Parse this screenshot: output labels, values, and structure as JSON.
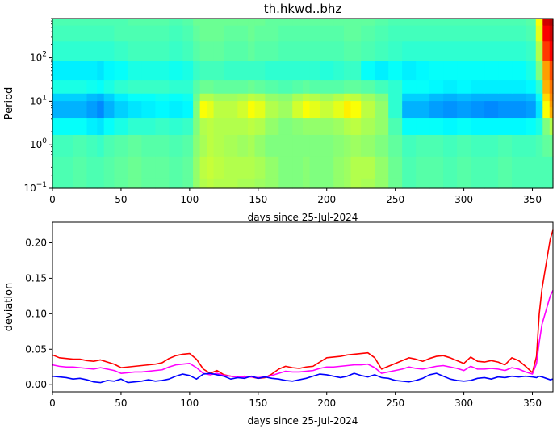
{
  "title": "th.hkwd..bhz",
  "chart_data": [
    {
      "type": "heatmap",
      "xlabel": "days since 25-Jul-2024",
      "ylabel": "Period",
      "xlim": [
        0,
        365
      ],
      "ylim": [
        0.1,
        800
      ],
      "yscale": "log",
      "xticks": [
        0,
        50,
        100,
        150,
        200,
        250,
        300,
        350
      ],
      "yticks": [
        {
          "value": 0.1,
          "base": "10",
          "exp": "−1"
        },
        {
          "value": 1,
          "base": "10",
          "exp": "0"
        },
        {
          "value": 10,
          "base": "10",
          "exp": "1"
        },
        {
          "value": 100,
          "base": "10",
          "exp": "2"
        }
      ],
      "colormap": "jet",
      "colorscale": [
        "#00007f",
        "#0000ff",
        "#007fff",
        "#00ffff",
        "#7fff7f",
        "#ffff00",
        "#ff7f00",
        "#ff0000",
        "#7f0000"
      ],
      "day_columns": [
        0,
        10,
        20,
        30,
        35,
        40,
        50,
        60,
        70,
        80,
        90,
        100,
        105,
        110,
        115,
        120,
        130,
        140,
        145,
        150,
        160,
        170,
        180,
        185,
        190,
        200,
        210,
        215,
        220,
        230,
        240,
        250,
        260,
        270,
        280,
        290,
        300,
        310,
        320,
        330,
        340,
        350,
        355,
        360,
        365
      ],
      "period_rows": [
        0.1,
        0.3,
        1,
        3,
        6,
        9,
        12,
        20,
        50,
        150,
        400,
        800
      ],
      "values": [
        [
          0.45,
          0.45,
          0.46,
          0.45,
          0.45,
          0.46,
          0.47,
          0.48,
          0.47,
          0.47,
          0.46,
          0.47,
          0.52,
          0.55,
          0.56,
          0.55,
          0.55,
          0.54,
          0.54,
          0.53,
          0.52,
          0.5,
          0.5,
          0.51,
          0.5,
          0.5,
          0.52,
          0.53,
          0.55,
          0.54,
          0.52,
          0.48,
          0.45,
          0.46,
          0.46,
          0.45,
          0.46,
          0.45,
          0.45,
          0.46,
          0.45,
          0.45,
          0.45,
          0.45,
          0.45
        ],
        [
          0.45,
          0.45,
          0.46,
          0.45,
          0.45,
          0.46,
          0.47,
          0.48,
          0.47,
          0.47,
          0.46,
          0.47,
          0.52,
          0.56,
          0.57,
          0.56,
          0.55,
          0.55,
          0.55,
          0.54,
          0.52,
          0.5,
          0.5,
          0.51,
          0.5,
          0.5,
          0.52,
          0.53,
          0.55,
          0.55,
          0.52,
          0.48,
          0.45,
          0.46,
          0.46,
          0.45,
          0.46,
          0.45,
          0.45,
          0.46,
          0.45,
          0.45,
          0.45,
          0.45,
          0.45
        ],
        [
          0.44,
          0.44,
          0.45,
          0.44,
          0.43,
          0.45,
          0.46,
          0.47,
          0.46,
          0.46,
          0.45,
          0.46,
          0.51,
          0.54,
          0.56,
          0.55,
          0.54,
          0.53,
          0.54,
          0.52,
          0.5,
          0.5,
          0.5,
          0.5,
          0.5,
          0.5,
          0.51,
          0.52,
          0.53,
          0.52,
          0.5,
          0.47,
          0.44,
          0.45,
          0.45,
          0.44,
          0.45,
          0.44,
          0.44,
          0.45,
          0.44,
          0.44,
          0.45,
          0.47,
          0.48
        ],
        [
          0.38,
          0.38,
          0.38,
          0.36,
          0.35,
          0.38,
          0.4,
          0.42,
          0.42,
          0.43,
          0.42,
          0.43,
          0.5,
          0.55,
          0.56,
          0.55,
          0.55,
          0.55,
          0.56,
          0.55,
          0.52,
          0.5,
          0.51,
          0.52,
          0.52,
          0.52,
          0.53,
          0.55,
          0.56,
          0.54,
          0.52,
          0.45,
          0.38,
          0.38,
          0.38,
          0.37,
          0.38,
          0.37,
          0.37,
          0.37,
          0.37,
          0.38,
          0.4,
          0.5,
          0.55
        ],
        [
          0.3,
          0.3,
          0.3,
          0.28,
          0.26,
          0.3,
          0.33,
          0.35,
          0.36,
          0.37,
          0.36,
          0.37,
          0.5,
          0.62,
          0.6,
          0.56,
          0.56,
          0.58,
          0.62,
          0.6,
          0.55,
          0.53,
          0.58,
          0.62,
          0.6,
          0.57,
          0.6,
          0.64,
          0.62,
          0.56,
          0.52,
          0.42,
          0.3,
          0.3,
          0.28,
          0.27,
          0.28,
          0.27,
          0.26,
          0.27,
          0.27,
          0.28,
          0.35,
          0.62,
          0.7
        ],
        [
          0.3,
          0.3,
          0.3,
          0.28,
          0.26,
          0.3,
          0.33,
          0.35,
          0.36,
          0.37,
          0.36,
          0.37,
          0.5,
          0.62,
          0.6,
          0.56,
          0.56,
          0.58,
          0.62,
          0.6,
          0.55,
          0.53,
          0.58,
          0.62,
          0.6,
          0.57,
          0.6,
          0.64,
          0.62,
          0.56,
          0.52,
          0.42,
          0.3,
          0.3,
          0.28,
          0.27,
          0.28,
          0.27,
          0.26,
          0.27,
          0.27,
          0.28,
          0.35,
          0.62,
          0.72
        ],
        [
          0.33,
          0.33,
          0.33,
          0.31,
          0.3,
          0.33,
          0.36,
          0.38,
          0.38,
          0.39,
          0.38,
          0.39,
          0.48,
          0.55,
          0.55,
          0.53,
          0.53,
          0.54,
          0.56,
          0.55,
          0.52,
          0.51,
          0.54,
          0.56,
          0.55,
          0.53,
          0.55,
          0.57,
          0.56,
          0.53,
          0.5,
          0.42,
          0.33,
          0.33,
          0.31,
          0.3,
          0.31,
          0.3,
          0.3,
          0.3,
          0.3,
          0.31,
          0.38,
          0.66,
          0.74
        ],
        [
          0.4,
          0.4,
          0.4,
          0.39,
          0.38,
          0.4,
          0.42,
          0.43,
          0.43,
          0.43,
          0.42,
          0.42,
          0.46,
          0.48,
          0.48,
          0.47,
          0.47,
          0.47,
          0.48,
          0.47,
          0.46,
          0.45,
          0.46,
          0.47,
          0.46,
          0.46,
          0.46,
          0.47,
          0.47,
          0.46,
          0.44,
          0.42,
          0.38,
          0.38,
          0.37,
          0.36,
          0.37,
          0.36,
          0.36,
          0.36,
          0.36,
          0.37,
          0.42,
          0.7,
          0.76
        ],
        [
          0.36,
          0.36,
          0.36,
          0.36,
          0.35,
          0.37,
          0.38,
          0.4,
          0.4,
          0.4,
          0.39,
          0.4,
          0.43,
          0.44,
          0.44,
          0.44,
          0.43,
          0.43,
          0.43,
          0.43,
          0.42,
          0.42,
          0.42,
          0.42,
          0.42,
          0.41,
          0.42,
          0.43,
          0.43,
          0.38,
          0.36,
          0.38,
          0.36,
          0.37,
          0.38,
          0.38,
          0.38,
          0.38,
          0.38,
          0.38,
          0.38,
          0.4,
          0.5,
          0.72,
          0.8
        ],
        [
          0.42,
          0.42,
          0.42,
          0.42,
          0.42,
          0.42,
          0.43,
          0.44,
          0.44,
          0.44,
          0.43,
          0.44,
          0.46,
          0.47,
          0.47,
          0.47,
          0.46,
          0.46,
          0.47,
          0.46,
          0.46,
          0.45,
          0.45,
          0.45,
          0.45,
          0.45,
          0.45,
          0.46,
          0.46,
          0.45,
          0.44,
          0.43,
          0.42,
          0.42,
          0.42,
          0.42,
          0.42,
          0.42,
          0.42,
          0.42,
          0.42,
          0.43,
          0.55,
          0.82,
          0.88
        ],
        [
          0.44,
          0.44,
          0.44,
          0.44,
          0.44,
          0.44,
          0.45,
          0.45,
          0.45,
          0.45,
          0.44,
          0.45,
          0.47,
          0.48,
          0.48,
          0.48,
          0.47,
          0.47,
          0.48,
          0.47,
          0.47,
          0.46,
          0.46,
          0.46,
          0.46,
          0.46,
          0.46,
          0.47,
          0.47,
          0.46,
          0.45,
          0.44,
          0.44,
          0.44,
          0.44,
          0.44,
          0.44,
          0.44,
          0.44,
          0.44,
          0.44,
          0.45,
          0.6,
          0.88,
          0.92
        ],
        [
          0.45,
          0.45,
          0.45,
          0.45,
          0.45,
          0.45,
          0.45,
          0.46,
          0.46,
          0.46,
          0.45,
          0.46,
          0.48,
          0.48,
          0.48,
          0.48,
          0.48,
          0.48,
          0.48,
          0.48,
          0.47,
          0.47,
          0.47,
          0.47,
          0.47,
          0.47,
          0.47,
          0.47,
          0.47,
          0.47,
          0.46,
          0.45,
          0.45,
          0.45,
          0.45,
          0.45,
          0.45,
          0.45,
          0.45,
          0.45,
          0.45,
          0.46,
          0.62,
          0.92,
          0.95
        ]
      ]
    },
    {
      "type": "line",
      "xlabel": "days since 25-Jul-2024",
      "ylabel": "deviation",
      "xlim": [
        0,
        365
      ],
      "ylim": [
        -0.01,
        0.229
      ],
      "xticks": [
        0,
        50,
        100,
        150,
        200,
        250,
        300,
        350
      ],
      "yticks": [
        "0.00",
        "0.05",
        "0.10",
        "0.15",
        "0.20"
      ],
      "x": [
        0,
        5,
        10,
        15,
        20,
        25,
        30,
        35,
        40,
        45,
        50,
        55,
        60,
        65,
        70,
        75,
        80,
        85,
        90,
        95,
        100,
        105,
        110,
        115,
        120,
        125,
        130,
        135,
        140,
        145,
        150,
        155,
        160,
        165,
        170,
        175,
        180,
        185,
        190,
        195,
        200,
        205,
        210,
        215,
        220,
        225,
        230,
        235,
        240,
        245,
        250,
        255,
        260,
        265,
        270,
        275,
        280,
        285,
        290,
        295,
        300,
        305,
        310,
        315,
        320,
        325,
        330,
        335,
        340,
        345,
        350,
        353,
        355,
        357,
        360,
        363,
        365
      ],
      "series": [
        {
          "color": "#ff0000",
          "values": [
            0.042,
            0.038,
            0.037,
            0.036,
            0.036,
            0.034,
            0.033,
            0.035,
            0.032,
            0.029,
            0.024,
            0.025,
            0.026,
            0.027,
            0.028,
            0.029,
            0.031,
            0.037,
            0.041,
            0.043,
            0.044,
            0.036,
            0.022,
            0.016,
            0.02,
            0.014,
            0.012,
            0.011,
            0.012,
            0.011,
            0.009,
            0.01,
            0.015,
            0.022,
            0.026,
            0.024,
            0.023,
            0.025,
            0.026,
            0.032,
            0.038,
            0.039,
            0.04,
            0.042,
            0.043,
            0.044,
            0.045,
            0.038,
            0.022,
            0.026,
            0.03,
            0.034,
            0.038,
            0.036,
            0.033,
            0.037,
            0.04,
            0.041,
            0.038,
            0.034,
            0.03,
            0.039,
            0.033,
            0.032,
            0.034,
            0.032,
            0.028,
            0.038,
            0.034,
            0.026,
            0.017,
            0.04,
            0.1,
            0.135,
            0.17,
            0.205,
            0.218
          ]
        },
        {
          "color": "#ff00ff",
          "values": [
            0.028,
            0.026,
            0.025,
            0.025,
            0.024,
            0.023,
            0.022,
            0.024,
            0.022,
            0.02,
            0.016,
            0.017,
            0.018,
            0.018,
            0.019,
            0.02,
            0.021,
            0.025,
            0.028,
            0.029,
            0.03,
            0.024,
            0.016,
            0.014,
            0.016,
            0.013,
            0.012,
            0.011,
            0.011,
            0.011,
            0.01,
            0.011,
            0.013,
            0.016,
            0.019,
            0.018,
            0.018,
            0.019,
            0.02,
            0.023,
            0.025,
            0.025,
            0.026,
            0.027,
            0.028,
            0.028,
            0.029,
            0.024,
            0.016,
            0.018,
            0.02,
            0.022,
            0.025,
            0.023,
            0.022,
            0.024,
            0.026,
            0.027,
            0.025,
            0.023,
            0.02,
            0.026,
            0.022,
            0.022,
            0.023,
            0.022,
            0.02,
            0.024,
            0.022,
            0.018,
            0.015,
            0.03,
            0.06,
            0.085,
            0.105,
            0.125,
            0.133
          ]
        },
        {
          "color": "#0000ff",
          "values": [
            0.012,
            0.011,
            0.01,
            0.008,
            0.009,
            0.007,
            0.004,
            0.003,
            0.006,
            0.005,
            0.008,
            0.003,
            0.004,
            0.005,
            0.007,
            0.005,
            0.006,
            0.008,
            0.012,
            0.015,
            0.013,
            0.008,
            0.015,
            0.016,
            0.014,
            0.012,
            0.008,
            0.01,
            0.009,
            0.012,
            0.009,
            0.011,
            0.009,
            0.008,
            0.006,
            0.005,
            0.007,
            0.009,
            0.012,
            0.015,
            0.014,
            0.012,
            0.01,
            0.012,
            0.016,
            0.013,
            0.011,
            0.014,
            0.01,
            0.009,
            0.006,
            0.005,
            0.004,
            0.006,
            0.009,
            0.014,
            0.016,
            0.012,
            0.008,
            0.006,
            0.005,
            0.006,
            0.009,
            0.01,
            0.008,
            0.011,
            0.01,
            0.012,
            0.011,
            0.012,
            0.011,
            0.01,
            0.012,
            0.011,
            0.009,
            0.007,
            0.008
          ]
        }
      ]
    }
  ]
}
